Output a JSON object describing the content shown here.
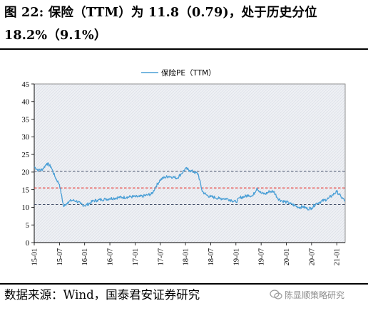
{
  "header": {
    "title": "图 22: 保险（TTM）为 11.8（0.79)，处于历史分位 18.2%（9.1%）"
  },
  "footer": {
    "source": "数据来源：Wind，国泰君安证券研究",
    "watermark": "陈显顺策略研究"
  },
  "colors": {
    "series": "#4a9fd6",
    "mean_line": "#e8312a",
    "band_lines": "#44506a",
    "plot_fill": "#eef0f4",
    "plot_hatch": "#d6dae3"
  },
  "chart_data": {
    "type": "line",
    "title": "",
    "xlabel": "",
    "ylabel": "",
    "ylim": [
      0,
      45
    ],
    "yticks": [
      0,
      5,
      10,
      15,
      20,
      25,
      30,
      35,
      40,
      45
    ],
    "x_range": [
      "2015-01",
      "2021-03"
    ],
    "xticks": [
      "15-01",
      "15-07",
      "16-01",
      "16-07",
      "17-01",
      "17-07",
      "18-01",
      "18-07",
      "19-01",
      "19-07",
      "20-01",
      "20-07",
      "21-01"
    ],
    "legend": {
      "entries": [
        "保险PE（TTM）"
      ],
      "position": "top-center"
    },
    "grid": false,
    "series": [
      {
        "name": "保险PE（TTM）",
        "x": [
          "2015-01",
          "2015-02",
          "2015-03",
          "2015-04",
          "2015-05",
          "2015-06",
          "2015-07",
          "2015-08",
          "2015-09",
          "2015-10",
          "2015-11",
          "2015-12",
          "2016-01",
          "2016-02",
          "2016-03",
          "2016-04",
          "2016-05",
          "2016-06",
          "2016-07",
          "2016-08",
          "2016-09",
          "2016-10",
          "2016-11",
          "2016-12",
          "2017-01",
          "2017-02",
          "2017-03",
          "2017-04",
          "2017-05",
          "2017-06",
          "2017-07",
          "2017-08",
          "2017-09",
          "2017-10",
          "2017-11",
          "2017-12",
          "2018-01",
          "2018-02",
          "2018-03",
          "2018-04",
          "2018-05",
          "2018-06",
          "2018-07",
          "2018-08",
          "2018-09",
          "2018-10",
          "2018-11",
          "2018-12",
          "2019-01",
          "2019-02",
          "2019-03",
          "2019-04",
          "2019-05",
          "2019-06",
          "2019-07",
          "2019-08",
          "2019-09",
          "2019-10",
          "2019-11",
          "2019-12",
          "2020-01",
          "2020-02",
          "2020-03",
          "2020-04",
          "2020-05",
          "2020-06",
          "2020-07",
          "2020-08",
          "2020-09",
          "2020-10",
          "2020-11",
          "2020-12",
          "2021-01",
          "2021-02",
          "2021-03"
        ],
        "values": [
          21.5,
          20.5,
          20.8,
          22.5,
          21.5,
          18.5,
          16.5,
          10.2,
          11.5,
          12.0,
          11.8,
          11.0,
          10.5,
          11.0,
          11.8,
          12.0,
          12.2,
          12.3,
          12.5,
          12.6,
          12.8,
          12.8,
          12.9,
          13.0,
          13.0,
          13.0,
          13.2,
          13.5,
          13.8,
          16.0,
          17.8,
          18.5,
          18.8,
          18.6,
          18.3,
          19.5,
          21.0,
          20.5,
          20.0,
          19.5,
          14.5,
          13.5,
          13.0,
          12.8,
          12.5,
          12.5,
          12.4,
          12.0,
          11.5,
          12.8,
          13.0,
          13.5,
          13.2,
          15.5,
          14.0,
          13.8,
          14.5,
          14.5,
          12.5,
          11.8,
          11.5,
          11.0,
          10.5,
          10.0,
          10.2,
          9.6,
          9.8,
          11.0,
          11.5,
          12.0,
          12.5,
          13.5,
          14.5,
          13.0,
          11.8
        ]
      }
    ],
    "reference_lines": [
      {
        "kind": "mean",
        "value": 15.5
      },
      {
        "kind": "mean_plus_1std",
        "value": 20.2
      },
      {
        "kind": "mean_minus_1std",
        "value": 10.8
      }
    ]
  }
}
